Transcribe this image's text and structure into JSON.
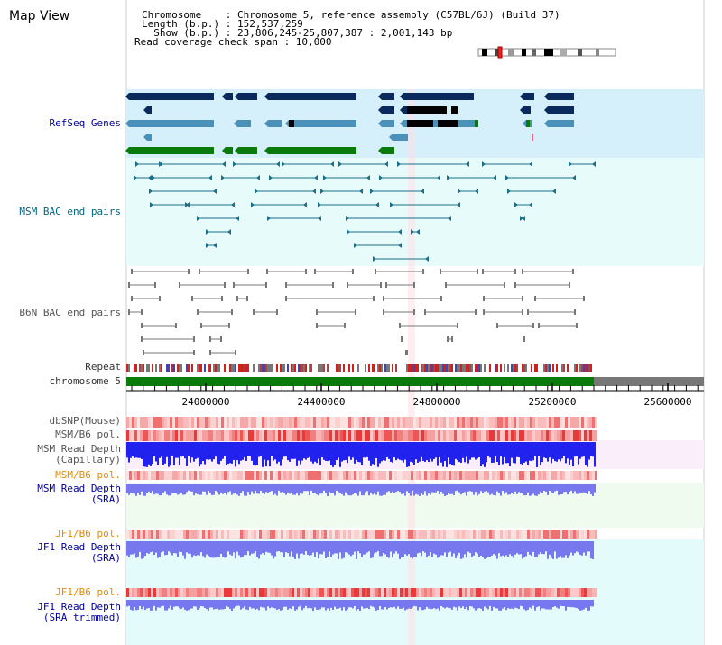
{
  "app": {
    "title": "Map View"
  },
  "header": {
    "line1": "Chromosome    : Chromosome 5, reference assembly (C57BL/6J) (Build 37)",
    "line2": "Length (b.p.) : 152,537,259",
    "line3": "  Show (b.p.) : 23,806,245-25,807,387 : 2,001,143 bp",
    "line4": "Read coverage check span : 10,000"
  },
  "tracks": {
    "refseq": "RefSeq Genes",
    "msm_bac": "MSM BAC end pairs",
    "b6n_bac": "B6N BAC end pairs",
    "repeat": "Repeat",
    "chromosome": "chromosome 5",
    "dbsnp": "dbSNP(Mouse)",
    "msm_b6_pol": "MSM/B6 pol.",
    "msm_depth_cap_1": "MSM Read Depth",
    "msm_depth_cap_2": "(Capillary)",
    "msm_b6_pol_sra": "MSM/B6 pol.",
    "msm_depth_sra_1": "MSM Read Depth",
    "msm_depth_sra_2": "(SRA)",
    "jf1_b6_pol_1": "JF1/B6 pol.",
    "jf1_depth_sra_1": "JF1 Read Depth",
    "jf1_depth_sra_2": "(SRA)",
    "jf1_b6_pol_2": "JF1/B6 pol.",
    "jf1_depth_trim_1": "JF1 Read Depth",
    "jf1_depth_trim_2": "(SRA trimmed)"
  },
  "axis": {
    "ticks": [
      "24000000",
      "24400000",
      "24800000",
      "25200000",
      "25600000"
    ]
  },
  "colors": {
    "refseq_bg": "#d6f0fb",
    "msm_bg": "#e8fbfb",
    "b6n_bg": "#ffffff",
    "navy": "#0a2a5e",
    "steelblue": "#4a90b8",
    "green": "#0a7a0a",
    "teal": "#1a6f8a",
    "grey": "#777777",
    "depth_blue": "#2222ee",
    "depth_light": "#7777ee",
    "snp_red": "#ee3333"
  }
}
